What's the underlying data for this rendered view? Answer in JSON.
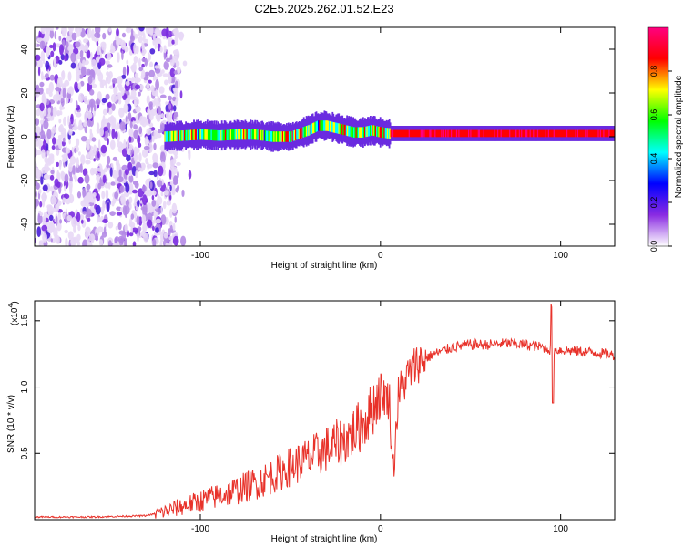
{
  "title": "C2E5.2025.262.01.52.E23",
  "chart_data": [
    {
      "type": "heatmap",
      "title": "C2E5.2025.262.01.52.E23",
      "xlabel": "Height of straight line (km)",
      "ylabel": "Frequency (Hz)",
      "xlim": [
        -192,
        130
      ],
      "ylim": [
        -50,
        50
      ],
      "xticks": [
        -100,
        0,
        100
      ],
      "yticks": [
        -40,
        -20,
        0,
        20,
        40
      ],
      "noise_region_km": [
        -192,
        -112
      ],
      "signal_track": {
        "x": [
          -120,
          -110,
          -100,
          -90,
          -80,
          -70,
          -60,
          -50,
          -40,
          -35,
          -30,
          -25,
          -20,
          -15,
          -10,
          -5,
          0,
          5,
          130
        ],
        "freq_hz": [
          0,
          0.5,
          1,
          0.5,
          1,
          1,
          0,
          0,
          3,
          5,
          5,
          4,
          3,
          2,
          2,
          3,
          2,
          1.5,
          1.5
        ]
      },
      "colorbar": {
        "label": "Normalized spectral amplitude",
        "ticks": [
          "0.0",
          "0.2",
          "0.4",
          "0.6",
          "0.8"
        ],
        "range": [
          0,
          1
        ],
        "colors": [
          "#ffffff",
          "#8a2be2",
          "#0000ff",
          "#00ffff",
          "#00ff00",
          "#ffff00",
          "#ff0000",
          "#ff0080"
        ]
      }
    },
    {
      "type": "line",
      "xlabel": "Height of straight line (km)",
      "ylabel": "SNR (10 * v/v)",
      "y_scale_label": "(x10",
      "y_scale_exp": "4",
      "y_scale_close": ")",
      "xlim": [
        -192,
        130
      ],
      "ylim": [
        0,
        1.65
      ],
      "xticks": [
        -100,
        0,
        100
      ],
      "yticks": [
        "0.5",
        "1.0",
        "1.5"
      ],
      "series": [
        {
          "name": "SNR",
          "color": "#e8322a",
          "x": [
            -192,
            -160,
            -130,
            -120,
            -110,
            -100,
            -90,
            -80,
            -70,
            -60,
            -50,
            -40,
            -30,
            -20,
            -15,
            -10,
            -5,
            0,
            5,
            7,
            10,
            15,
            20,
            30,
            40,
            50,
            60,
            70,
            80,
            90,
            95,
            100,
            110,
            120,
            130
          ],
          "y": [
            0.02,
            0.02,
            0.03,
            0.06,
            0.1,
            0.14,
            0.18,
            0.22,
            0.27,
            0.33,
            0.4,
            0.46,
            0.53,
            0.6,
            0.66,
            0.72,
            0.82,
            0.97,
            0.9,
            0.35,
            0.95,
            1.08,
            1.18,
            1.25,
            1.3,
            1.32,
            1.32,
            1.33,
            1.32,
            1.3,
            1.28,
            1.28,
            1.27,
            1.26,
            1.24
          ]
        }
      ]
    }
  ]
}
